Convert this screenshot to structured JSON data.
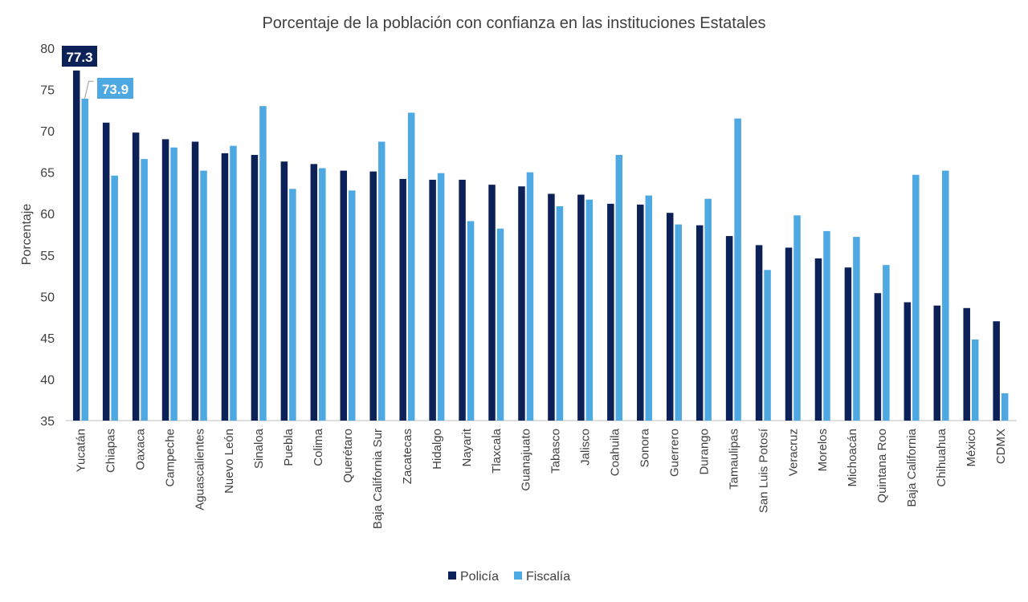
{
  "chart_data": {
    "type": "bar",
    "title": "Porcentaje de la población con confianza en las instituciones Estatales",
    "xlabel": "",
    "ylabel": "Porcentaje",
    "ylim": [
      35,
      80
    ],
    "yticks": [
      35,
      40,
      45,
      50,
      55,
      60,
      65,
      70,
      75,
      80
    ],
    "grid": false,
    "legend_position": "bottom",
    "categories": [
      "Yucatán",
      "Chiapas",
      "Oaxaca",
      "Campeche",
      "Aguascalientes",
      "Nuevo León",
      "Sinaloa",
      "Puebla",
      "Colima",
      "Querétaro",
      "Baja California Sur",
      "Zacatecas",
      "Hidalgo",
      "Nayarit",
      "Tlaxcala",
      "Guanajuato",
      "Tabasco",
      "Jalisco",
      "Coahuila",
      "Sonora",
      "Guerrero",
      "Durango",
      "Tamaulipas",
      "San Luis Potosí",
      "Veracruz",
      "Morelos",
      "Michoacán",
      "Quintana Roo",
      "Baja California",
      "Chihuahua",
      "México",
      "CDMX"
    ],
    "series": [
      {
        "name": "Policía",
        "color": "#0c2157",
        "values": [
          77.3,
          71.0,
          69.8,
          69.0,
          68.7,
          67.3,
          67.1,
          66.3,
          66.0,
          65.2,
          65.1,
          64.2,
          64.1,
          64.1,
          63.5,
          63.3,
          62.4,
          62.3,
          61.2,
          61.1,
          60.1,
          58.6,
          57.3,
          56.2,
          55.9,
          54.6,
          53.5,
          50.4,
          49.3,
          48.9,
          48.6,
          47.0
        ]
      },
      {
        "name": "Fiscalía",
        "color": "#4ea8e1",
        "values": [
          73.9,
          64.6,
          66.6,
          68.0,
          65.2,
          68.2,
          73.0,
          63.0,
          65.5,
          62.8,
          68.7,
          72.2,
          64.9,
          59.1,
          58.2,
          65.0,
          60.9,
          61.7,
          67.1,
          62.2,
          58.7,
          61.8,
          71.5,
          53.2,
          59.8,
          57.9,
          57.2,
          53.8,
          64.7,
          65.2,
          44.8,
          38.3
        ]
      }
    ],
    "data_labels": [
      {
        "series": "Policía",
        "category": "Yucatán",
        "text": "77.3"
      },
      {
        "series": "Fiscalía",
        "category": "Yucatán",
        "text": "73.9"
      }
    ]
  }
}
